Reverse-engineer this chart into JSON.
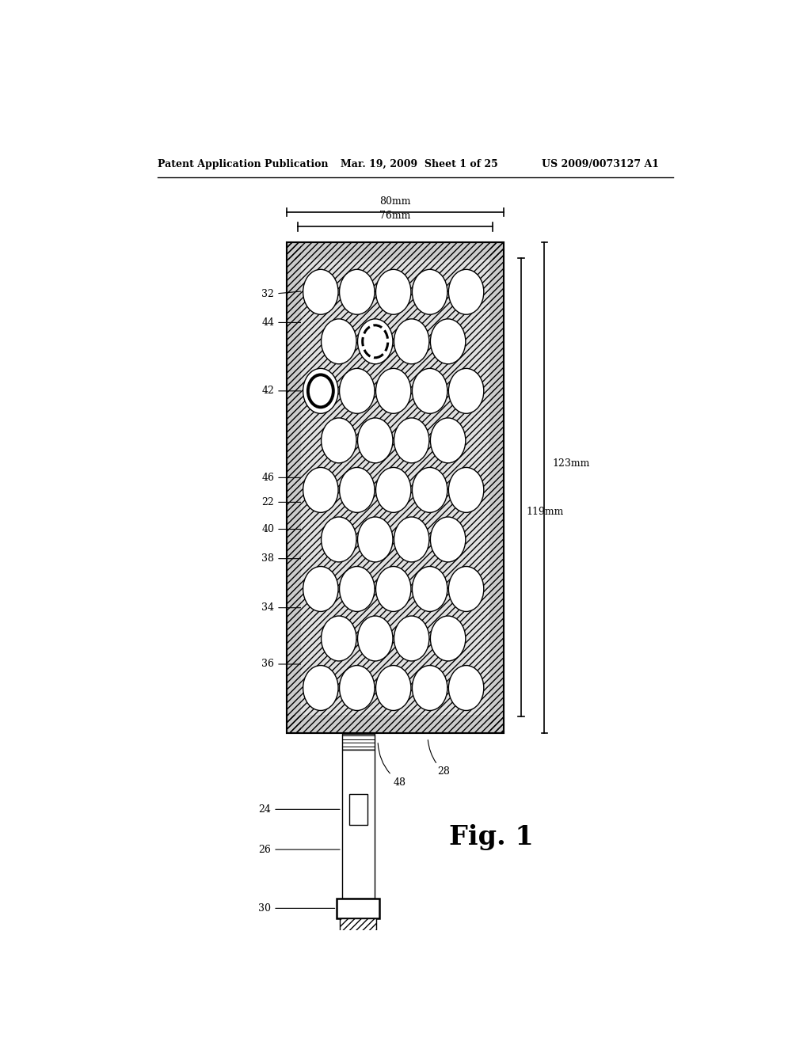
{
  "bg_color": "#ffffff",
  "header_left": "Patent Application Publication",
  "header_mid": "Mar. 19, 2009  Sheet 1 of 25",
  "header_right": "US 2009/0073127 A1",
  "fig_label": "Fig. 1",
  "dim_80mm": "80mm",
  "dim_76mm": "76mm",
  "dim_123mm": "123mm",
  "dim_119mm": "119mm"
}
